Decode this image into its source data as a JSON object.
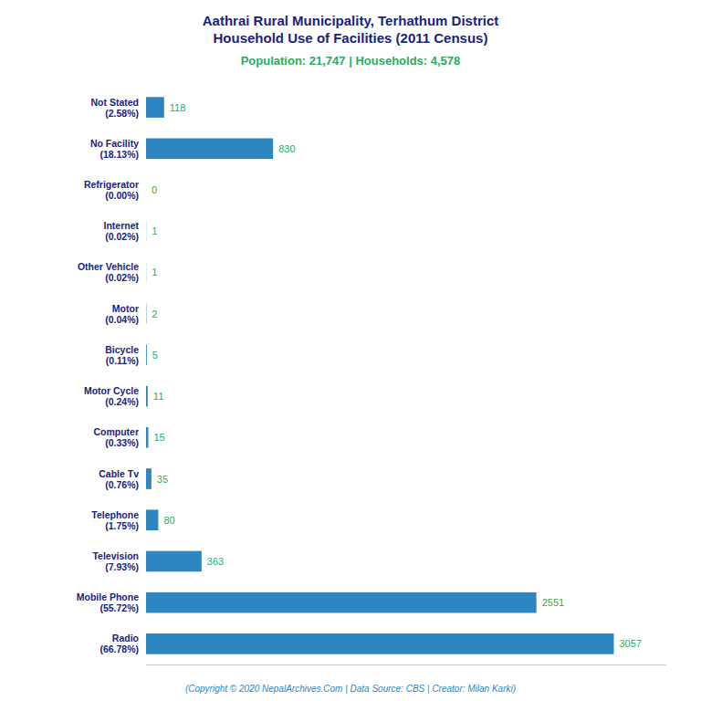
{
  "chart_data": {
    "type": "bar",
    "orientation": "horizontal",
    "title": "Aathrai Rural Municipality, Terhathum District\nHousehold Use of Facilities (2011 Census)",
    "subtitle": "Population: 21,747 | Households: 4,578",
    "annotations": [
      "(Copyright © 2020 NepalArchives.Com | Data Source: CBS | Creator: Milan Karki)"
    ],
    "categories": [
      "Radio\n(66.78%)",
      "Mobile Phone\n(55.72%)",
      "Television\n(7.93%)",
      "Telephone\n(1.75%)",
      "Cable Tv\n(0.76%)",
      "Computer\n(0.33%)",
      "Motor Cycle\n(0.24%)",
      "Bicycle\n(0.11%)",
      "Motor\n(0.04%)",
      "Other Vehicle\n(0.02%)",
      "Internet\n(0.02%)",
      "Refrigerator\n(0.00%)",
      "No Facility\n(18.13%)",
      "Not Stated\n(2.58%)"
    ],
    "values": [
      3057,
      2551,
      363,
      80,
      35,
      15,
      11,
      5,
      2,
      1,
      1,
      0,
      830,
      118
    ],
    "color": "#2e86c1",
    "xlim": [
      0,
      3400
    ],
    "data_labels": true,
    "tick_labels": "y",
    "grid": false
  }
}
